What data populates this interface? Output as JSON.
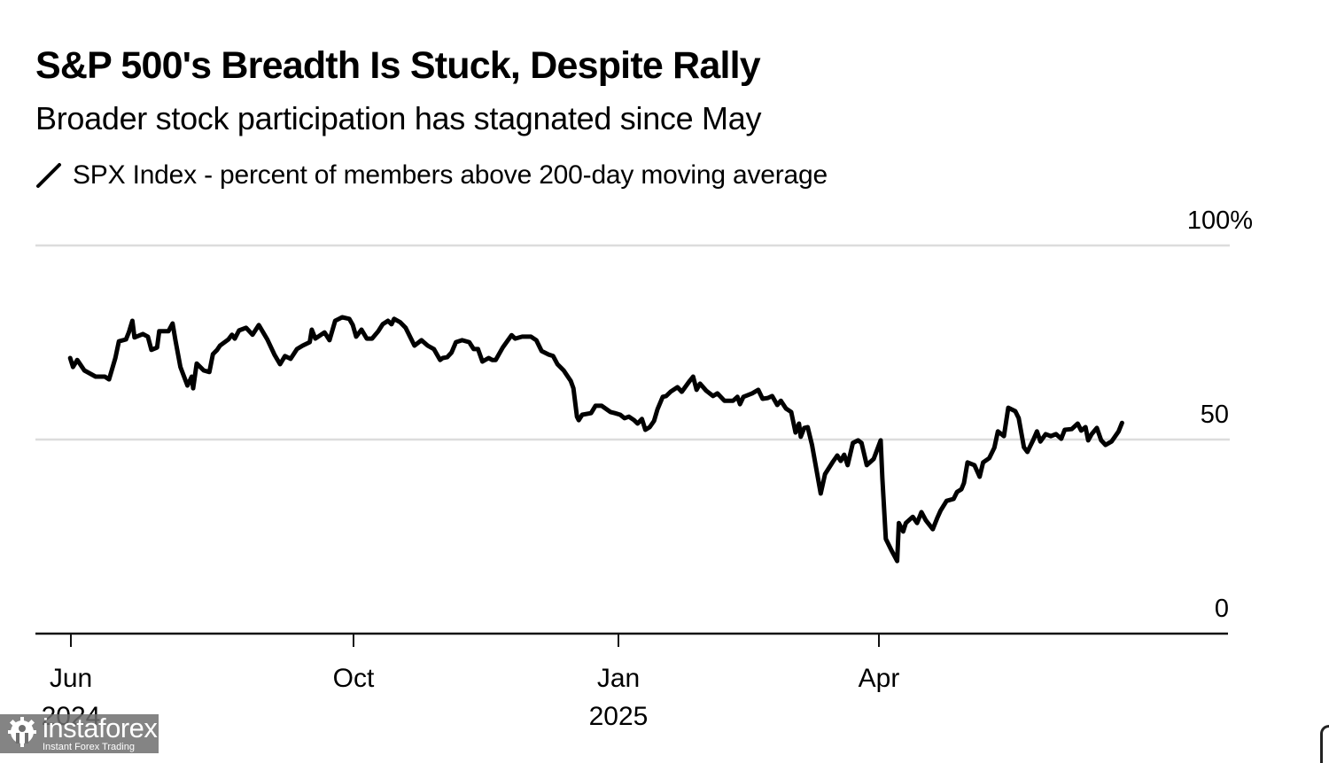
{
  "chart_data": {
    "type": "line",
    "title": "S&P 500's Breadth Is Stuck, Despite Rally",
    "subtitle": "Broader stock participation has stagnated since May",
    "legend": [
      {
        "name": "SPX Index - percent of members above 200-day moving average",
        "color": "#000000"
      }
    ],
    "legend_placement": "top-left",
    "xlabel": "",
    "ylabel": "",
    "ylim": [
      0,
      100
    ],
    "yticks": [
      {
        "value": 100,
        "label": "100%"
      },
      {
        "value": 50,
        "label": "50"
      },
      {
        "value": 0,
        "label": "0"
      }
    ],
    "ytick_side": "right",
    "grid": true,
    "x_unit": "months since 1 Jun 2024",
    "xticks": [
      {
        "value": 0,
        "label": "Jun",
        "sublabel": "2024"
      },
      {
        "value": 4,
        "label": "Oct",
        "sublabel": ""
      },
      {
        "value": 7,
        "label": "Jan",
        "sublabel": "2025"
      },
      {
        "value": 10,
        "label": "Apr",
        "sublabel": ""
      }
    ],
    "xlim": [
      -0.5,
      13.99
    ],
    "series": [
      {
        "name": "SPX Index - percent of members above 200-day moving average",
        "color": "#000000",
        "points": [
          [
            -0.01,
            71.0
          ],
          [
            0.03,
            68.7
          ],
          [
            0.09,
            70.5
          ],
          [
            0.19,
            67.8
          ],
          [
            0.35,
            66.2
          ],
          [
            0.48,
            66.2
          ],
          [
            0.54,
            65.5
          ],
          [
            0.63,
            71.0
          ],
          [
            0.68,
            75.3
          ],
          [
            0.78,
            75.8
          ],
          [
            0.82,
            77.6
          ],
          [
            0.87,
            80.6
          ],
          [
            0.9,
            76.3
          ],
          [
            1.02,
            77.2
          ],
          [
            1.09,
            76.5
          ],
          [
            1.14,
            73.1
          ],
          [
            1.22,
            73.7
          ],
          [
            1.25,
            77.9
          ],
          [
            1.38,
            77.9
          ],
          [
            1.44,
            79.9
          ],
          [
            1.48,
            75.6
          ],
          [
            1.55,
            68.7
          ],
          [
            1.65,
            63.9
          ],
          [
            1.71,
            66.2
          ],
          [
            1.73,
            63.2
          ],
          [
            1.78,
            69.6
          ],
          [
            1.88,
            67.8
          ],
          [
            1.96,
            67.4
          ],
          [
            2.01,
            72.0
          ],
          [
            2.07,
            73.1
          ],
          [
            2.11,
            74.2
          ],
          [
            2.23,
            75.8
          ],
          [
            2.28,
            77.0
          ],
          [
            2.32,
            76.0
          ],
          [
            2.38,
            78.1
          ],
          [
            2.48,
            78.8
          ],
          [
            2.57,
            77.0
          ],
          [
            2.66,
            79.5
          ],
          [
            2.78,
            75.8
          ],
          [
            2.88,
            71.9
          ],
          [
            2.96,
            69.4
          ],
          [
            3.03,
            71.5
          ],
          [
            3.11,
            70.8
          ],
          [
            3.2,
            73.3
          ],
          [
            3.28,
            74.2
          ],
          [
            3.38,
            75.1
          ],
          [
            3.41,
            78.3
          ],
          [
            3.46,
            76.0
          ],
          [
            3.59,
            77.6
          ],
          [
            3.66,
            75.6
          ],
          [
            3.74,
            80.6
          ],
          [
            3.84,
            81.5
          ],
          [
            3.94,
            81.1
          ],
          [
            3.99,
            79.5
          ],
          [
            4.03,
            76.5
          ],
          [
            4.09,
            78.3
          ],
          [
            4.15,
            76.0
          ],
          [
            4.21,
            76.0
          ],
          [
            4.28,
            77.9
          ],
          [
            4.33,
            79.7
          ],
          [
            4.39,
            80.6
          ],
          [
            4.43,
            79.7
          ],
          [
            4.46,
            81.1
          ],
          [
            4.53,
            80.2
          ],
          [
            4.59,
            78.8
          ],
          [
            4.69,
            74.2
          ],
          [
            4.77,
            75.6
          ],
          [
            4.84,
            74.2
          ],
          [
            4.91,
            73.3
          ],
          [
            4.98,
            70.5
          ],
          [
            5.01,
            71.0
          ],
          [
            5.06,
            71.2
          ],
          [
            5.11,
            72.4
          ],
          [
            5.16,
            75.1
          ],
          [
            5.23,
            75.6
          ],
          [
            5.31,
            75.1
          ],
          [
            5.36,
            73.3
          ],
          [
            5.41,
            73.3
          ],
          [
            5.46,
            70.1
          ],
          [
            5.53,
            71.0
          ],
          [
            5.57,
            70.5
          ],
          [
            5.61,
            70.5
          ],
          [
            5.69,
            73.7
          ],
          [
            5.79,
            76.9
          ],
          [
            5.83,
            76.0
          ],
          [
            5.91,
            76.5
          ],
          [
            6.01,
            76.5
          ],
          [
            6.07,
            75.6
          ],
          [
            6.13,
            72.8
          ],
          [
            6.21,
            71.9
          ],
          [
            6.26,
            71.5
          ],
          [
            6.31,
            69.4
          ],
          [
            6.38,
            67.8
          ],
          [
            6.46,
            65.1
          ],
          [
            6.49,
            63.2
          ],
          [
            6.53,
            55.9
          ],
          [
            6.55,
            55.0
          ],
          [
            6.59,
            56.4
          ],
          [
            6.69,
            56.8
          ],
          [
            6.74,
            58.7
          ],
          [
            6.81,
            58.7
          ],
          [
            6.91,
            57.1
          ],
          [
            6.96,
            56.8
          ],
          [
            7.02,
            56.4
          ],
          [
            7.07,
            55.5
          ],
          [
            7.12,
            55.9
          ],
          [
            7.18,
            55.0
          ],
          [
            7.22,
            54.1
          ],
          [
            7.27,
            55.3
          ],
          [
            7.31,
            52.5
          ],
          [
            7.36,
            53.2
          ],
          [
            7.41,
            54.8
          ],
          [
            7.45,
            57.8
          ],
          [
            7.51,
            61.0
          ],
          [
            7.55,
            61.2
          ],
          [
            7.6,
            62.3
          ],
          [
            7.68,
            63.5
          ],
          [
            7.73,
            62.3
          ],
          [
            7.82,
            65.1
          ],
          [
            7.86,
            66.2
          ],
          [
            7.9,
            62.8
          ],
          [
            7.94,
            64.4
          ],
          [
            8.01,
            62.6
          ],
          [
            8.09,
            61.2
          ],
          [
            8.14,
            61.9
          ],
          [
            8.22,
            60.0
          ],
          [
            8.32,
            60.0
          ],
          [
            8.37,
            61.0
          ],
          [
            8.4,
            59.1
          ],
          [
            8.44,
            61.0
          ],
          [
            8.54,
            61.9
          ],
          [
            8.61,
            62.8
          ],
          [
            8.66,
            60.5
          ],
          [
            8.72,
            60.7
          ],
          [
            8.77,
            61.2
          ],
          [
            8.83,
            58.9
          ],
          [
            8.87,
            60.0
          ],
          [
            8.93,
            58.0
          ],
          [
            8.99,
            57.1
          ],
          [
            9.04,
            51.8
          ],
          [
            9.08,
            54.1
          ],
          [
            9.1,
            50.7
          ],
          [
            9.14,
            53.0
          ],
          [
            9.18,
            53.2
          ],
          [
            9.23,
            48.6
          ],
          [
            9.29,
            41.1
          ],
          [
            9.33,
            36.1
          ],
          [
            9.38,
            41.1
          ],
          [
            9.47,
            44.3
          ],
          [
            9.52,
            45.9
          ],
          [
            9.56,
            44.5
          ],
          [
            9.6,
            46.1
          ],
          [
            9.64,
            43.4
          ],
          [
            9.7,
            49.1
          ],
          [
            9.76,
            49.8
          ],
          [
            9.8,
            49.1
          ],
          [
            9.86,
            43.4
          ],
          [
            9.94,
            45.0
          ],
          [
            10.02,
            49.8
          ],
          [
            10.04,
            40.0
          ],
          [
            10.08,
            24.4
          ],
          [
            10.15,
            21.2
          ],
          [
            10.21,
            18.7
          ],
          [
            10.23,
            28.5
          ],
          [
            10.28,
            26.3
          ],
          [
            10.31,
            28.5
          ],
          [
            10.39,
            30.1
          ],
          [
            10.44,
            28.5
          ],
          [
            10.49,
            31.3
          ],
          [
            10.54,
            29.2
          ],
          [
            10.62,
            26.9
          ],
          [
            10.67,
            29.7
          ],
          [
            10.71,
            31.7
          ],
          [
            10.78,
            34.2
          ],
          [
            10.86,
            34.7
          ],
          [
            10.9,
            36.5
          ],
          [
            10.95,
            37.2
          ],
          [
            10.98,
            38.8
          ],
          [
            11.02,
            44.1
          ],
          [
            11.1,
            43.4
          ],
          [
            11.16,
            40.4
          ],
          [
            11.2,
            44.1
          ],
          [
            11.27,
            45.2
          ],
          [
            11.33,
            47.9
          ],
          [
            11.37,
            52.1
          ],
          [
            11.44,
            50.9
          ],
          [
            11.49,
            58.2
          ],
          [
            11.57,
            57.3
          ],
          [
            11.61,
            55.5
          ],
          [
            11.67,
            48.0
          ],
          [
            11.71,
            46.8
          ],
          [
            11.78,
            50.0
          ],
          [
            11.82,
            52.1
          ],
          [
            11.86,
            49.5
          ],
          [
            11.92,
            51.4
          ],
          [
            11.98,
            50.9
          ],
          [
            12.04,
            51.4
          ],
          [
            12.1,
            50.2
          ],
          [
            12.14,
            52.5
          ],
          [
            12.22,
            52.7
          ],
          [
            12.29,
            54.1
          ],
          [
            12.33,
            52.3
          ],
          [
            12.38,
            53.2
          ],
          [
            12.41,
            49.8
          ],
          [
            12.45,
            51.4
          ],
          [
            12.51,
            53.0
          ],
          [
            12.56,
            49.8
          ],
          [
            12.61,
            48.6
          ],
          [
            12.68,
            49.5
          ],
          [
            12.76,
            52.1
          ],
          [
            12.8,
            54.3
          ]
        ]
      }
    ]
  },
  "watermark": {
    "name": "instaforex",
    "tagline": "Instant Forex Trading"
  }
}
